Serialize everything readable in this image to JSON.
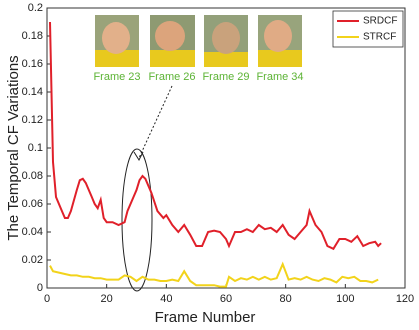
{
  "chart_data": {
    "type": "line",
    "xlabel": "Frame Number",
    "ylabel": "The Temporal CF Variations",
    "xlim": [
      0,
      120
    ],
    "xticks": [
      0,
      20,
      40,
      60,
      80,
      100,
      120
    ],
    "ylim": [
      0,
      0.2
    ],
    "yticks": [
      0,
      0.02,
      0.04,
      0.06,
      0.08,
      0.1,
      0.12,
      0.14,
      0.16,
      0.18,
      0.2
    ],
    "legend": "upper right",
    "inset_labels": [
      "Frame 23",
      "Frame 26",
      "Frame 29",
      "Frame 34"
    ],
    "series": [
      {
        "name": "SRDCF",
        "color": "#e0202a",
        "x": [
          1,
          2,
          3,
          5,
          6,
          7,
          8,
          10,
          11,
          12,
          13,
          14,
          15,
          16,
          17,
          18,
          19,
          20,
          22,
          24,
          26,
          27,
          28,
          29,
          30,
          31,
          32,
          33,
          35,
          37,
          39,
          40,
          42,
          44,
          46,
          48,
          50,
          52,
          54,
          56,
          58,
          60,
          61,
          63,
          65,
          67,
          69,
          71,
          73,
          75,
          77,
          79,
          81,
          83,
          85,
          87,
          88,
          90,
          92,
          94,
          96,
          98,
          100,
          102,
          104,
          106,
          108,
          110,
          111,
          112
        ],
        "values": [
          0.19,
          0.09,
          0.065,
          0.055,
          0.05,
          0.05,
          0.055,
          0.07,
          0.077,
          0.078,
          0.075,
          0.07,
          0.065,
          0.06,
          0.057,
          0.063,
          0.05,
          0.047,
          0.047,
          0.045,
          0.047,
          0.055,
          0.06,
          0.065,
          0.07,
          0.077,
          0.08,
          0.078,
          0.068,
          0.055,
          0.05,
          0.052,
          0.045,
          0.04,
          0.045,
          0.038,
          0.03,
          0.03,
          0.04,
          0.041,
          0.04,
          0.035,
          0.03,
          0.04,
          0.04,
          0.042,
          0.04,
          0.045,
          0.042,
          0.043,
          0.04,
          0.045,
          0.038,
          0.035,
          0.04,
          0.045,
          0.055,
          0.045,
          0.04,
          0.03,
          0.028,
          0.035,
          0.035,
          0.033,
          0.037,
          0.03,
          0.032,
          0.033,
          0.03,
          0.032
        ]
      },
      {
        "name": "STRCF",
        "color": "#f2d31b",
        "x": [
          1,
          2,
          4,
          6,
          8,
          10,
          12,
          14,
          16,
          18,
          20,
          22,
          24,
          26,
          28,
          30,
          32,
          34,
          36,
          38,
          40,
          42,
          44,
          46,
          48,
          50,
          52,
          54,
          56,
          58,
          60,
          61,
          63,
          65,
          67,
          69,
          71,
          73,
          75,
          77,
          79,
          81,
          83,
          85,
          87,
          89,
          91,
          93,
          95,
          97,
          99,
          101,
          103,
          105,
          107,
          109,
          111
        ],
        "values": [
          0.016,
          0.012,
          0.011,
          0.01,
          0.009,
          0.009,
          0.008,
          0.008,
          0.007,
          0.007,
          0.006,
          0.006,
          0.006,
          0.009,
          0.008,
          0.005,
          0.008,
          0.006,
          0.006,
          0.005,
          0.005,
          0.006,
          0.005,
          0.012,
          0.005,
          0.002,
          0.002,
          0.002,
          0.002,
          0.001,
          0.001,
          0.008,
          0.005,
          0.007,
          0.006,
          0.008,
          0.006,
          0.008,
          0.006,
          0.007,
          0.017,
          0.006,
          0.007,
          0.006,
          0.008,
          0.006,
          0.005,
          0.007,
          0.006,
          0.004,
          0.008,
          0.007,
          0.008,
          0.005,
          0.005,
          0.004,
          0.006
        ]
      }
    ]
  }
}
